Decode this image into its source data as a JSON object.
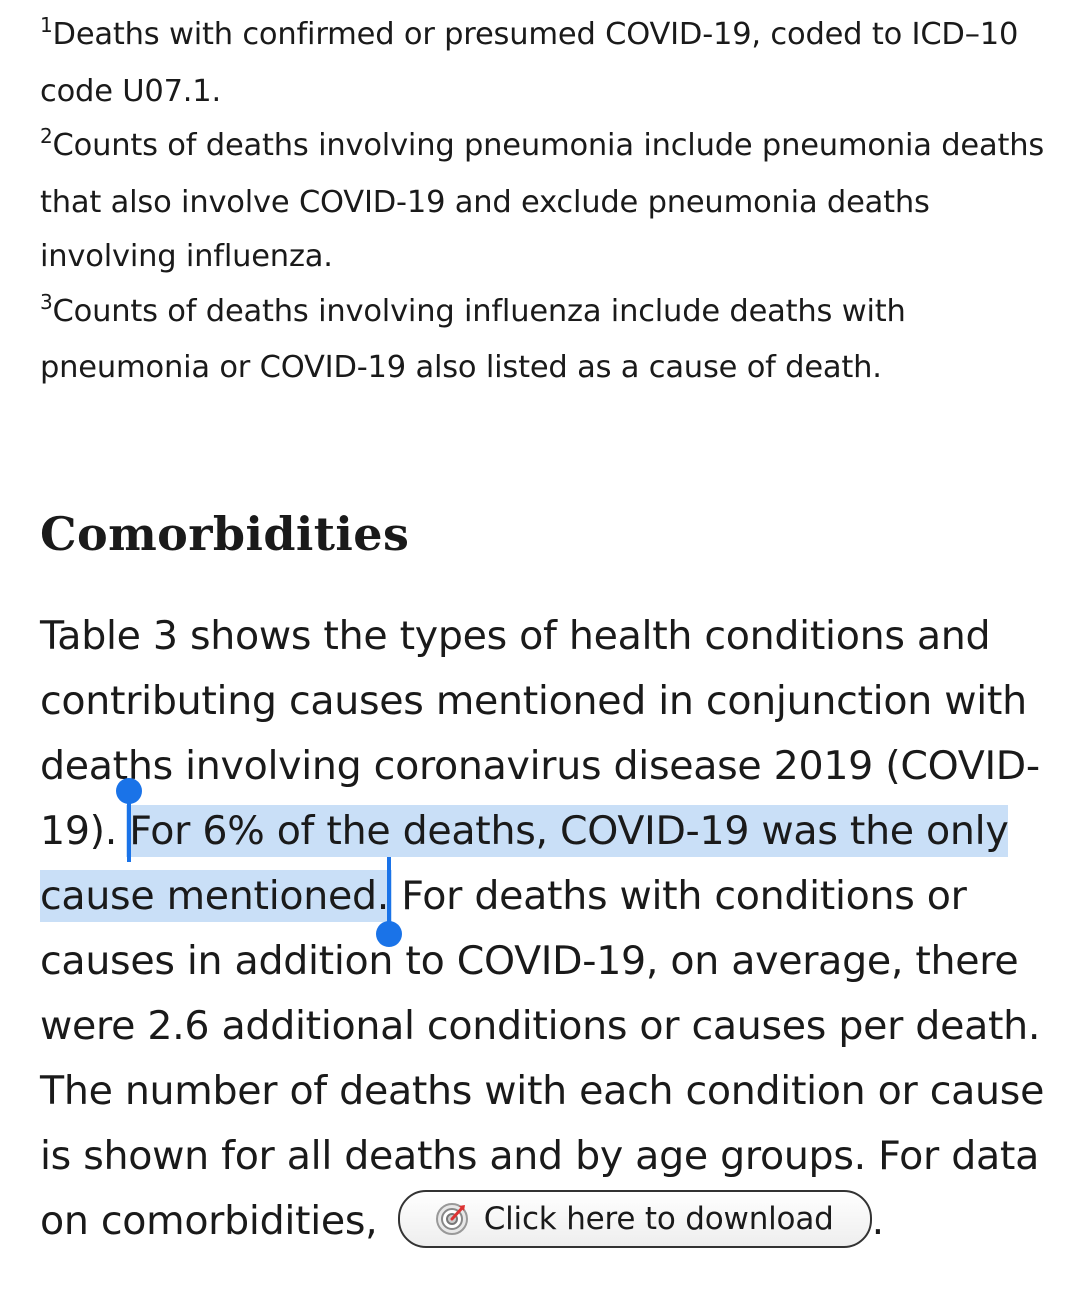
{
  "footnotes": [
    {
      "marker": "1",
      "text": "Deaths with confirmed or presumed COVID-19, coded to ICD–10 code U07.1."
    },
    {
      "marker": "2",
      "text": "Counts of deaths involving pneumonia include pneumonia deaths that also involve COVID-19 and exclude pneumonia deaths involving influenza."
    },
    {
      "marker": "3",
      "text": "Counts of deaths involving influenza include deaths with pneumonia or COVID-19 also listed as a cause of death."
    }
  ],
  "section": {
    "heading": "Comorbidities",
    "paragraph": {
      "before_selection": "Table 3 shows the types of health conditions and contributing causes mentioned in conjunction with deaths involving coronavirus disease 2019 (COVID-19). ",
      "selected_text": "For 6% of the deaths, COVID-19 was the only cause mentioned.",
      "after_selection": " For deaths with conditions or causes in addition to COVID-19, on average, there were 2.6 additional conditions or causes per death. The number of deaths with each condition or cause is shown for all deaths and by age groups. For data on comorbidities, ",
      "trailing": "."
    },
    "download_button": {
      "label": "Click here to download",
      "icon": "download-target-icon"
    }
  },
  "colors": {
    "selection_highlight": "#c9dff7",
    "selection_handle": "#1a73e8"
  }
}
